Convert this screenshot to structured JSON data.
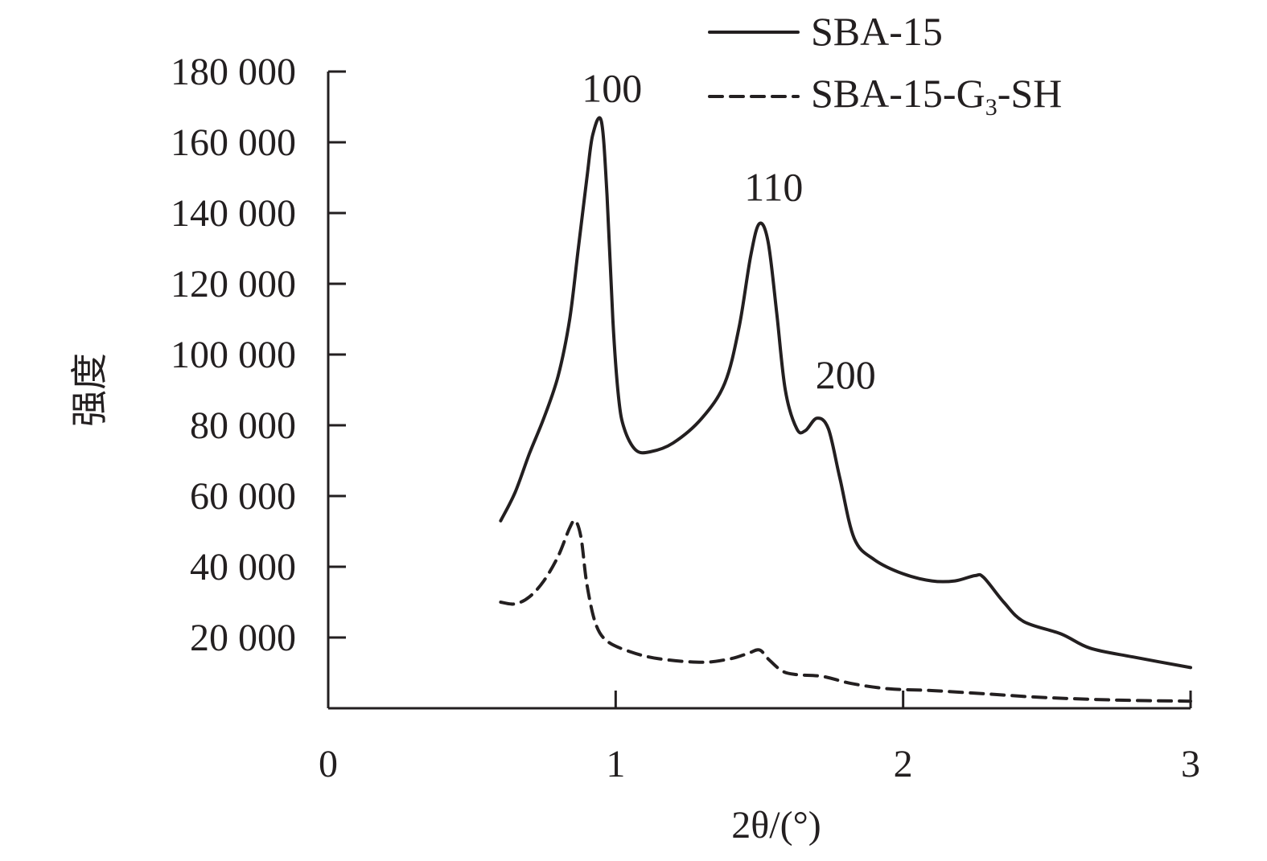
{
  "chart_data": {
    "type": "line",
    "title": "",
    "xlabel": "2θ/(°)",
    "ylabel": "强度",
    "xlim": [
      0,
      3
    ],
    "ylim": [
      0,
      180000
    ],
    "x_ticks": [
      "0",
      "1",
      "2",
      "3"
    ],
    "y_ticks": [
      "20 000",
      "40 000",
      "60 000",
      "80 000",
      "100 000",
      "120 000",
      "140 000",
      "160 000",
      "180 000"
    ],
    "grid": false,
    "legend_position": "top-right",
    "series": [
      {
        "name": "SBA-15",
        "legend_label": "SBA-15",
        "style": "solid",
        "color": "#231f20",
        "points": [
          [
            0.6,
            53000
          ],
          [
            0.65,
            61000
          ],
          [
            0.7,
            72000
          ],
          [
            0.75,
            82000
          ],
          [
            0.8,
            94000
          ],
          [
            0.84,
            110000
          ],
          [
            0.87,
            130000
          ],
          [
            0.9,
            150000
          ],
          [
            0.92,
            162000
          ],
          [
            0.95,
            166000
          ],
          [
            0.97,
            145000
          ],
          [
            0.99,
            110000
          ],
          [
            1.01,
            88000
          ],
          [
            1.03,
            79000
          ],
          [
            1.07,
            73000
          ],
          [
            1.12,
            72500
          ],
          [
            1.2,
            75000
          ],
          [
            1.3,
            82000
          ],
          [
            1.38,
            92000
          ],
          [
            1.43,
            108000
          ],
          [
            1.47,
            128000
          ],
          [
            1.5,
            137000
          ],
          [
            1.53,
            132000
          ],
          [
            1.56,
            112000
          ],
          [
            1.59,
            90000
          ],
          [
            1.63,
            79000
          ],
          [
            1.66,
            78500
          ],
          [
            1.7,
            82000
          ],
          [
            1.74,
            79000
          ],
          [
            1.78,
            65000
          ],
          [
            1.83,
            48000
          ],
          [
            1.9,
            42000
          ],
          [
            2.0,
            38000
          ],
          [
            2.1,
            36000
          ],
          [
            2.18,
            36000
          ],
          [
            2.25,
            37500
          ],
          [
            2.28,
            37000
          ],
          [
            2.35,
            30000
          ],
          [
            2.42,
            24500
          ],
          [
            2.55,
            21000
          ],
          [
            2.65,
            17000
          ],
          [
            2.8,
            14500
          ],
          [
            3.0,
            11500
          ]
        ]
      },
      {
        "name": "SBA-15-G3-SH",
        "legend_label": "SBA-15-G",
        "legend_sub": "3",
        "legend_suffix": "-SH",
        "style": "dashed",
        "color": "#231f20",
        "points": [
          [
            0.6,
            30000
          ],
          [
            0.65,
            29500
          ],
          [
            0.7,
            31500
          ],
          [
            0.75,
            36000
          ],
          [
            0.8,
            43000
          ],
          [
            0.84,
            51000
          ],
          [
            0.86,
            53000
          ],
          [
            0.88,
            48000
          ],
          [
            0.9,
            35000
          ],
          [
            0.93,
            24000
          ],
          [
            0.97,
            19000
          ],
          [
            1.05,
            16000
          ],
          [
            1.15,
            14000
          ],
          [
            1.3,
            13000
          ],
          [
            1.4,
            14000
          ],
          [
            1.46,
            15500
          ],
          [
            1.5,
            16500
          ],
          [
            1.53,
            14000
          ],
          [
            1.58,
            10500
          ],
          [
            1.63,
            9500
          ],
          [
            1.72,
            9000
          ],
          [
            1.82,
            7000
          ],
          [
            1.95,
            5500
          ],
          [
            2.1,
            5000
          ],
          [
            2.3,
            4000
          ],
          [
            2.5,
            3000
          ],
          [
            2.75,
            2300
          ],
          [
            3.0,
            2000
          ]
        ]
      }
    ],
    "annotations": [
      {
        "text": "100",
        "x": 0.987,
        "y": 171500
      },
      {
        "text": "110",
        "x": 1.55,
        "y": 143500
      },
      {
        "text": "200",
        "x": 1.8,
        "y": 90500
      }
    ]
  }
}
